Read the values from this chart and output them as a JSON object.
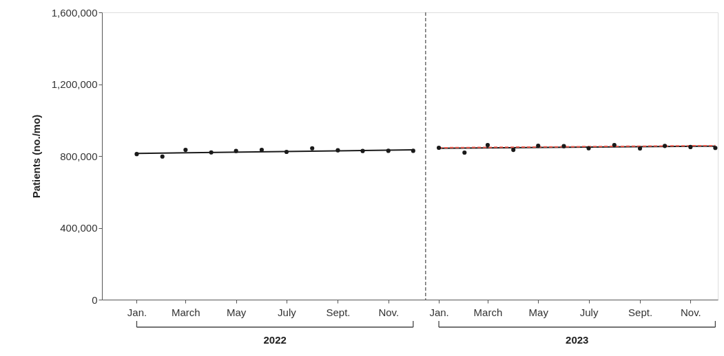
{
  "chart_data": {
    "type": "scatter",
    "ylabel": "Patients (no./mo)",
    "x": [
      "2022-01",
      "2022-02",
      "2022-03",
      "2022-04",
      "2022-05",
      "2022-06",
      "2022-07",
      "2022-08",
      "2022-09",
      "2022-10",
      "2022-11",
      "2022-12"
    ],
    "series": [
      {
        "color": "#1a1a1a",
        "marker": "circle",
        "values": [
          811000,
          797000,
          834000,
          820000,
          828000,
          834000,
          823000,
          843000,
          832000,
          828000,
          829000,
          829000
        ]
      },
      {
        "type": "line",
        "color": "#1a1a1a",
        "line_style": "solid",
        "x": [
          "2022-01",
          "2022-12"
        ],
        "values": [
          814000,
          834000
        ]
      },
      {
        "color": "#1a1a1a",
        "marker": "circle",
        "x": [
          "2023-01",
          "2023-02",
          "2023-03",
          "2023-04",
          "2023-05",
          "2023-06",
          "2023-07",
          "2023-08",
          "2023-09",
          "2023-10",
          "2023-11",
          "2023-12"
        ],
        "values": [
          846000,
          819000,
          861000,
          834000,
          857000,
          855000,
          843000,
          861000,
          842000,
          856000,
          850000,
          845000
        ]
      },
      {
        "type": "line",
        "color": "#1a1a1a",
        "line_style": "solid",
        "x": [
          "2023-01",
          "2023-12"
        ],
        "values": [
          843000,
          855000
        ]
      },
      {
        "type": "line",
        "color": "#e8564a",
        "line_style": "dashed",
        "x": [
          "2023-01",
          "2023-12"
        ],
        "values": [
          846000,
          858000
        ]
      }
    ],
    "xlim": [
      "2021-11-20",
      "2023-12-04"
    ],
    "xticks": [
      {
        "value": "2022-01",
        "label": "Jan."
      },
      {
        "value": "2022-03",
        "label": "March"
      },
      {
        "value": "2022-05",
        "label": "May"
      },
      {
        "value": "2022-07",
        "label": "July"
      },
      {
        "value": "2022-09",
        "label": "Sept."
      },
      {
        "value": "2022-11",
        "label": "Nov."
      },
      {
        "value": "2023-01",
        "label": "Jan."
      },
      {
        "value": "2023-03",
        "label": "March"
      },
      {
        "value": "2023-05",
        "label": "May"
      },
      {
        "value": "2023-07",
        "label": "July"
      },
      {
        "value": "2023-09",
        "label": "Sept."
      },
      {
        "value": "2023-11",
        "label": "Nov."
      }
    ],
    "ylim": [
      0,
      1600000
    ],
    "yticks": [
      0,
      {
        "value": 400000,
        "label": "400,000"
      },
      {
        "value": 800000,
        "label": "800,000"
      },
      {
        "value": 1200000,
        "label": "1,200,000"
      },
      {
        "value": 1600000,
        "label": "1,600,000"
      }
    ],
    "ref_lines": [
      {
        "axis": "x",
        "value": "2022-12-16",
        "color": "#555555",
        "line_style": "dashed"
      }
    ],
    "annotations": [
      "2022",
      "2023"
    ],
    "grid": false
  }
}
